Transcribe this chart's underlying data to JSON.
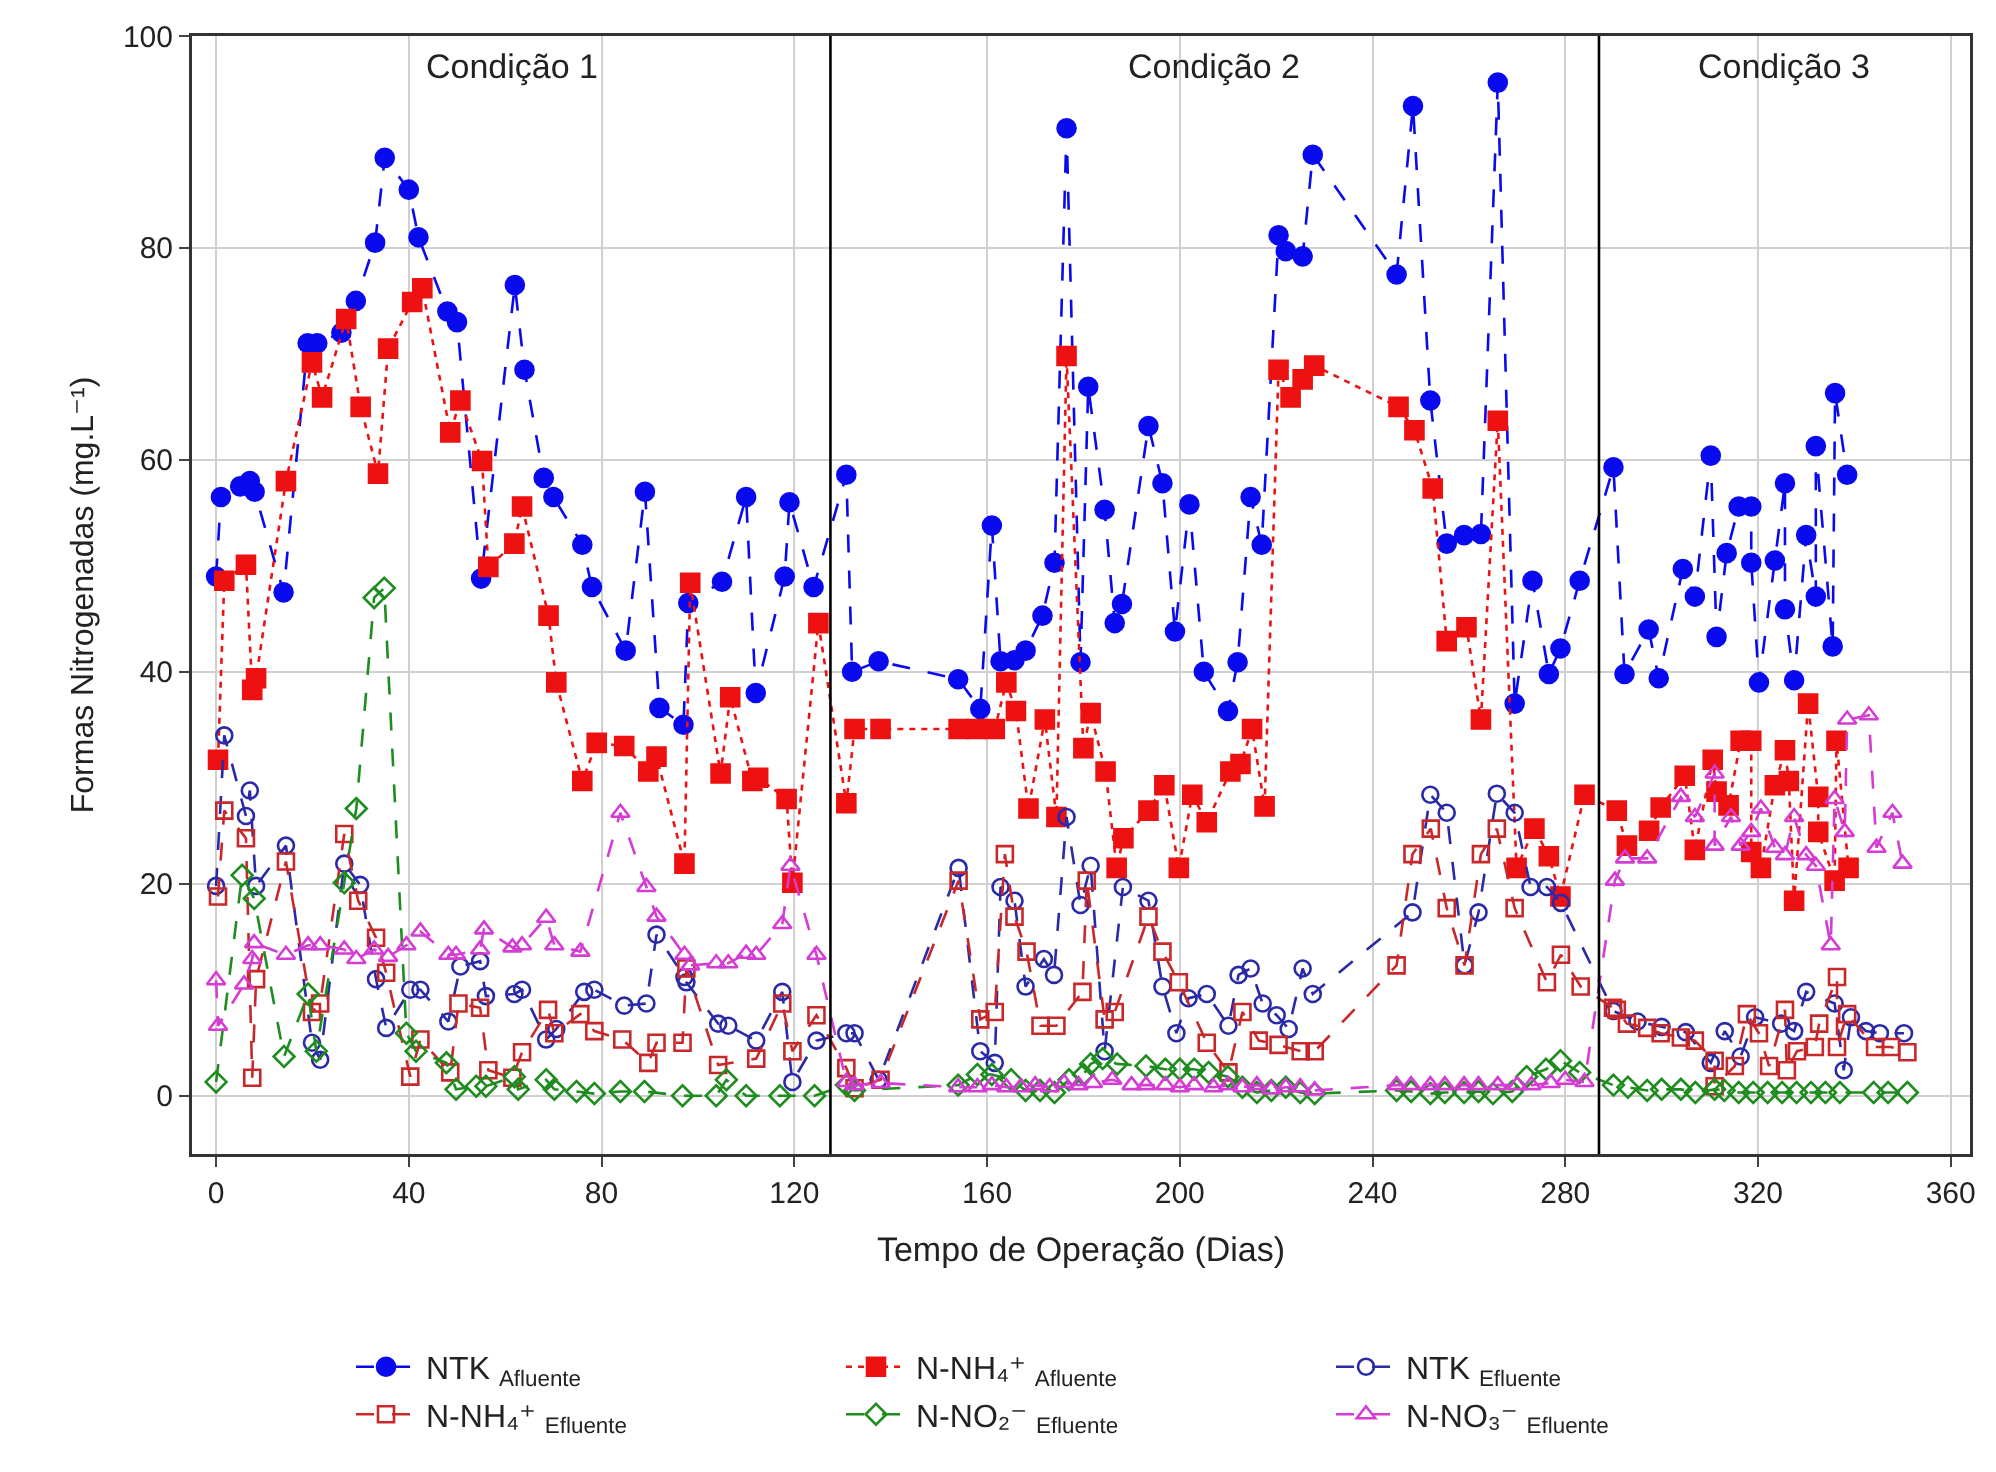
{
  "chart_data": {
    "type": "line",
    "xlabel": "Tempo de Operação (Dias)",
    "ylabel": "Formas Nitrogenadas (mg.L⁻¹)",
    "xlim": [
      -5,
      364
    ],
    "ylim": [
      -5.5,
      100
    ],
    "xticks": [
      0,
      40,
      80,
      120,
      160,
      200,
      240,
      280,
      320,
      360
    ],
    "yticks": [
      0,
      20,
      40,
      60,
      80,
      100
    ],
    "grid": true,
    "legend": "bottom",
    "ref_lines": [
      {
        "axis": "x",
        "value": 127.5,
        "color": "#000000",
        "line_style": "solid"
      },
      {
        "axis": "x",
        "value": 287,
        "color": "#000000",
        "line_style": "solid"
      }
    ],
    "annotations": [
      "Condição 1",
      "Condição 2",
      "Condição 3"
    ],
    "series": [
      {
        "name": "NTK $_{Afluente}$",
        "color": "#0a0aee",
        "marker": "circle",
        "line_style": "dashed",
        "x": [
          0,
          1,
          5,
          7,
          8,
          14,
          19,
          21,
          26,
          29,
          33,
          35,
          40,
          42,
          48,
          50,
          55,
          62,
          64,
          68,
          70,
          76,
          78,
          85,
          89,
          92,
          97,
          98,
          105,
          110,
          112,
          118,
          119,
          124,
          130.8,
          132,
          137.5,
          154,
          158.6,
          161,
          162.8,
          165.7,
          168,
          171.5,
          174,
          176.5,
          179.4,
          181,
          184.4,
          186.5,
          188,
          193.5,
          196.4,
          199,
          202,
          205,
          210,
          212,
          214.7,
          217,
          220.5,
          222,
          225.5,
          227.6,
          245,
          248.4,
          252,
          255.4,
          259,
          262.5,
          266,
          269.5,
          273.2,
          276.6,
          279,
          283,
          290,
          292.3,
          297.3,
          299.4,
          304.4,
          306.9,
          310.2,
          311.4,
          313.5,
          316,
          318.6,
          318.6,
          320.2,
          323.5,
          325.6,
          325.6,
          327.5,
          330,
          332,
          332,
          335.5,
          336,
          338.5
        ],
        "values": [
          49,
          56.5,
          57.5,
          58,
          57,
          47.5,
          71,
          71,
          72,
          75,
          80.5,
          88.5,
          85.5,
          81,
          74,
          73,
          48.8,
          76.5,
          68.5,
          58.3,
          56.5,
          52,
          48,
          42,
          57,
          36.6,
          35,
          46.5,
          48.5,
          56.5,
          38,
          49,
          56,
          48,
          58.6,
          40,
          41,
          39.3,
          36.5,
          53.8,
          41,
          41.1,
          42,
          45.3,
          50.3,
          91.3,
          40.9,
          66.9,
          55.3,
          44.6,
          46.4,
          63.2,
          57.8,
          43.8,
          55.8,
          40,
          36.3,
          40.9,
          56.5,
          52,
          81.2,
          79.7,
          79.2,
          88.8,
          77.5,
          93.4,
          65.6,
          52.1,
          52.9,
          53,
          95.6,
          37,
          48.6,
          39.8,
          42.2,
          48.6,
          59.3,
          39.8,
          44,
          39.4,
          49.7,
          47.1,
          60.4,
          43.3,
          51.2,
          55.6,
          55.6,
          50.3,
          39,
          50.5,
          57.8,
          45.9,
          39.2,
          52.9,
          47.1,
          61.3,
          42.4,
          66.3,
          58.6
        ]
      },
      {
        "name": "N-NH₄⁺ $_{Afluente}$",
        "color": "#ee1111",
        "marker": "square",
        "line_style": "dotted",
        "x": [
          0.4,
          1.7,
          6.2,
          7.5,
          8.3,
          14.5,
          19.9,
          22,
          27,
          30,
          33.6,
          35.7,
          40.7,
          42.8,
          48.6,
          50.7,
          55.2,
          56.5,
          61.9,
          63.5,
          69,
          70.6,
          76,
          79,
          84.7,
          89.7,
          91.4,
          97.2,
          98.4,
          104.7,
          106.7,
          111.3,
          112.5,
          118.4,
          119.6,
          125,
          130.8,
          132.5,
          137.9,
          154.1,
          157.8,
          161.6,
          164,
          166,
          168.6,
          172,
          174.4,
          176.5,
          180,
          181.5,
          184.6,
          186.9,
          188.3,
          193.5,
          196.8,
          199.8,
          202.6,
          205.6,
          210.5,
          212.6,
          215,
          217.6,
          220.5,
          223,
          225.5,
          227.9,
          245.4,
          248.7,
          252.5,
          255.4,
          259.5,
          262.5,
          266,
          269.9,
          273.6,
          276.6,
          279,
          284,
          290.7,
          292.8,
          297.4,
          299.8,
          304.8,
          306.9,
          310.6,
          311.4,
          313.9,
          316.4,
          318.6,
          318.6,
          320.6,
          323.5,
          325.6,
          326.4,
          327.5,
          330.4,
          332.5,
          332.5,
          335.9,
          336.3,
          338.8
        ],
        "values": [
          31.7,
          48.6,
          50.1,
          38.3,
          39.4,
          58,
          69.2,
          65.9,
          73.3,
          65,
          58.7,
          70.5,
          74.9,
          76.2,
          62.6,
          65.6,
          59.9,
          49.9,
          52.1,
          55.6,
          45.3,
          39,
          29.7,
          33.3,
          33,
          30.6,
          32,
          21.9,
          48.4,
          30.4,
          37.6,
          29.7,
          30,
          28,
          20.1,
          44.6,
          27.6,
          34.6,
          34.6,
          34.6,
          34.6,
          34.6,
          39,
          36.3,
          27.1,
          35.5,
          26.3,
          69.8,
          32.8,
          36.1,
          30.6,
          21.5,
          24.3,
          26.9,
          29.3,
          21.5,
          28.4,
          25.8,
          30.6,
          31.3,
          34.6,
          27.3,
          68.5,
          65.9,
          67.6,
          68.9,
          65,
          62.8,
          57.3,
          42.9,
          44.2,
          35.5,
          63.7,
          21.5,
          25.2,
          22.6,
          18.8,
          28.4,
          26.9,
          23.6,
          25,
          27.2,
          30.2,
          23.2,
          31.7,
          28.7,
          27.4,
          33.5,
          33.5,
          23,
          21.5,
          29.3,
          32.6,
          29.7,
          18.4,
          37,
          28.2,
          24.9,
          20.3,
          33.5,
          21.5
        ]
      },
      {
        "name": "NTK $_{Efluente}$",
        "color": "#2a2aa8",
        "marker": "circle",
        "line_style": "dashed",
        "x": [
          0,
          1.7,
          6.2,
          7,
          8.3,
          14.5,
          19.9,
          21.6,
          26.6,
          29.9,
          33.2,
          35.3,
          40.3,
          42.4,
          48.2,
          50.7,
          54.8,
          56,
          61.9,
          63.5,
          68.5,
          70.6,
          76.4,
          78.5,
          84.7,
          89.3,
          91.4,
          97.2,
          97.6,
          104.2,
          106.3,
          112.1,
          117.5,
          119.6,
          124.6,
          130.8,
          132.5,
          137.5,
          154.1,
          158.6,
          161.6,
          162.8,
          165.7,
          168,
          171.8,
          173.9,
          176.5,
          179.4,
          181.5,
          184.4,
          188.2,
          193.5,
          196.4,
          199.3,
          201.8,
          205.6,
          210.1,
          212.2,
          214.7,
          217.2,
          220.1,
          222.6,
          225.5,
          227.6,
          248.3,
          252,
          255.4,
          259.1,
          262,
          265.8,
          269.5,
          272.8,
          276.2,
          279.1,
          290,
          295,
          300,
          305,
          310.2,
          313.1,
          316.4,
          319.4,
          324.8,
          327.5,
          330,
          335.9,
          337.8,
          339.3,
          342.4,
          345.3,
          350.3
        ],
        "values": [
          19.8,
          34,
          26.4,
          28.8,
          19.8,
          23.6,
          5,
          3.4,
          21.9,
          19.9,
          11,
          6.4,
          10,
          10,
          7,
          12.2,
          12.7,
          9.4,
          9.6,
          10,
          5.3,
          6.3,
          9.8,
          10,
          8.5,
          8.7,
          15.2,
          11.2,
          10.7,
          6.8,
          6.6,
          5.2,
          9.8,
          1.3,
          5.2,
          5.9,
          5.9,
          1.5,
          21.5,
          4.2,
          3.1,
          19.7,
          18.4,
          10.3,
          12.9,
          11.4,
          26.3,
          18,
          21.7,
          4.2,
          19.7,
          18.4,
          10.3,
          5.9,
          9.2,
          9.6,
          6.6,
          11.4,
          12,
          8.7,
          7.6,
          6.3,
          12,
          9.6,
          17.3,
          28.4,
          26.7,
          12.3,
          17.3,
          28.5,
          26.7,
          19.7,
          19.7,
          18.2,
          8,
          7,
          6.5,
          6,
          3.1,
          6.1,
          3.7,
          7.4,
          6.8,
          6.1,
          9.8,
          8.7,
          2.4,
          7.4,
          6.1,
          5.9,
          5.9
        ]
      },
      {
        "name": "N-NH₄⁺ $_{Efluente}$",
        "color": "#c8282a",
        "marker": "square",
        "line_style": "dashed",
        "x": [
          0.4,
          1.7,
          6.2,
          7.5,
          8.3,
          14.5,
          19.9,
          21.6,
          26.6,
          29.5,
          33.2,
          35.3,
          40.3,
          42.4,
          48.6,
          50.3,
          54.8,
          56.5,
          61.5,
          63.5,
          68.9,
          70.2,
          75.6,
          78.5,
          84.3,
          89.7,
          91.4,
          96.8,
          97.6,
          104.2,
          112.1,
          117.5,
          119.6,
          124.6,
          130.8,
          132.5,
          137.9,
          154.1,
          158.6,
          161.6,
          163.7,
          165.7,
          168.2,
          171.1,
          174.4,
          179.8,
          180.7,
          184.4,
          186.5,
          193.5,
          196.4,
          199.8,
          205.6,
          210.1,
          213,
          216.4,
          220.5,
          225.1,
          228,
          245,
          248.3,
          252.1,
          255.4,
          259.1,
          262.5,
          265.8,
          269.5,
          276.2,
          279.1,
          283.2,
          289.9,
          290.7,
          292.8,
          297,
          299.8,
          304,
          306.9,
          311,
          311,
          315.2,
          317.7,
          320.2,
          322.3,
          325.6,
          326,
          328.1,
          331.8,
          332.7,
          336.4,
          336.4,
          338.5,
          344.3,
          347.6,
          351
        ],
        "values": [
          18.8,
          26.9,
          24.3,
          1.7,
          11,
          22.1,
          7.9,
          8.7,
          24.7,
          18.4,
          14.9,
          11.6,
          1.8,
          5.3,
          2.2,
          8.7,
          8.3,
          2.4,
          1.7,
          4.1,
          8.1,
          5.9,
          7.7,
          6.1,
          5.3,
          3.1,
          5,
          5,
          12,
          2.9,
          3.5,
          8.7,
          4.2,
          7.6,
          2.6,
          0.7,
          1.5,
          20.3,
          7.2,
          7.9,
          22.8,
          16.9,
          13.6,
          6.6,
          6.6,
          9.8,
          20.3,
          7.2,
          7.9,
          16.9,
          13.6,
          10.7,
          5,
          2.2,
          7.9,
          5.2,
          4.8,
          4.2,
          4.2,
          12.3,
          22.8,
          25.2,
          17.7,
          12.3,
          22.8,
          25.2,
          17.7,
          10.7,
          13.3,
          10.3,
          8.3,
          8.1,
          6.8,
          6.4,
          5.9,
          5.5,
          5.2,
          3.3,
          0.9,
          2.8,
          7.7,
          5.9,
          2.8,
          8.1,
          2.4,
          4.2,
          4.6,
          6.8,
          11.2,
          4.6,
          7.7,
          4.6,
          4.6,
          4.1
        ]
      },
      {
        "name": "N-NO₂⁻ $_{Efluente}$",
        "color": "#1e8c1e",
        "marker": "diamond",
        "line_style": "dashed",
        "x": [
          0,
          5.4,
          7.9,
          14.1,
          19.1,
          20.8,
          26.6,
          29.1,
          32.8,
          34.9,
          39.5,
          41.5,
          47.8,
          49.8,
          54,
          56,
          61.9,
          62.7,
          68.5,
          70.2,
          74.8,
          78.5,
          83.9,
          88.9,
          96.8,
          103.8,
          105.9,
          110,
          117,
          124.2,
          130.8,
          132.5,
          154,
          158,
          161,
          165,
          168,
          171,
          174,
          177,
          180,
          181.5,
          184,
          187,
          193,
          197,
          200,
          203,
          206,
          210,
          213,
          216,
          219,
          222,
          225,
          228,
          245,
          248,
          252,
          255,
          259,
          262,
          265,
          269,
          272,
          276,
          279,
          283,
          290,
          293,
          297,
          300,
          304,
          307,
          311,
          313,
          316,
          319,
          322,
          325,
          328,
          331,
          334,
          337,
          344,
          347,
          351
        ],
        "values": [
          1.3,
          20.8,
          18.6,
          3.7,
          9.6,
          4.2,
          20.1,
          27.1,
          47,
          47.9,
          5.9,
          4.2,
          3.1,
          0.6,
          0.9,
          0.9,
          1.8,
          0.6,
          1.5,
          0.6,
          0.4,
          0.2,
          0.4,
          0.4,
          0,
          0,
          1.5,
          0,
          0,
          0,
          1,
          0.5,
          1,
          2,
          2,
          1.5,
          0.5,
          0.5,
          0.3,
          1.5,
          2,
          3,
          3.5,
          3,
          2.8,
          2.5,
          2.5,
          2.5,
          2.2,
          1.8,
          0.8,
          0.3,
          0.5,
          0.8,
          0.3,
          0.2,
          0.5,
          0.4,
          0.2,
          0.3,
          0.3,
          0.4,
          0.2,
          0.4,
          1.8,
          2.5,
          3.3,
          2.2,
          1,
          0.8,
          0.5,
          0.6,
          0.6,
          0.3,
          0.6,
          0.5,
          0.3,
          0.3,
          0.3,
          0.3,
          0.3,
          0.3,
          0.3,
          0.3,
          0.3,
          0.3,
          0.3
        ]
      },
      {
        "name": "N-NO₃⁻ $_{Efluente}$",
        "color": "#d43cd4",
        "marker": "triangle",
        "line_style": "dashed",
        "x": [
          0,
          0.4,
          5.8,
          7.5,
          7.9,
          14.5,
          19.1,
          21.6,
          26.6,
          29.1,
          32.8,
          35.7,
          39.5,
          42.4,
          48.2,
          49.8,
          54.8,
          55.6,
          61.5,
          63.5,
          68.5,
          70.2,
          75.6,
          83.9,
          89.3,
          91.4,
          97.2,
          98.4,
          103.8,
          106.3,
          110,
          112.1,
          117.5,
          119.2,
          124.6,
          130.8,
          132.5,
          137.9,
          154,
          158,
          161,
          164,
          167,
          170,
          173,
          176,
          179,
          182,
          186,
          190,
          193,
          197,
          200,
          203,
          207,
          210,
          213,
          216,
          219,
          222,
          225,
          228,
          245,
          248,
          252,
          255,
          259,
          262,
          266,
          270,
          273,
          277,
          280,
          284,
          290.3,
          292.4,
          297,
          304,
          306.9,
          311,
          311,
          314.4,
          316.4,
          318.6,
          320.6,
          323.5,
          325.6,
          327.5,
          330,
          332,
          335.1,
          335.9,
          338,
          338.5,
          343,
          344.6,
          347.9,
          350
        ],
        "values": [
          10.9,
          6.6,
          10.5,
          12.9,
          14.4,
          13.3,
          14.2,
          14.2,
          13.8,
          12.9,
          13.8,
          13.1,
          14.2,
          15.5,
          13.3,
          13.3,
          13.8,
          15.7,
          14,
          14.2,
          16.8,
          14.2,
          13.6,
          26.7,
          19.7,
          16.9,
          13.3,
          12.3,
          12.5,
          12.5,
          13.4,
          13.3,
          16.2,
          21.7,
          13.3,
          1.3,
          1,
          1.2,
          0.8,
          0.8,
          1,
          0.8,
          0.8,
          1,
          0.8,
          1.2,
          1,
          1.2,
          1.5,
          1,
          1,
          1,
          0.8,
          1,
          0.8,
          1,
          0.8,
          1,
          0.6,
          0.8,
          0.8,
          0.5,
          1,
          1,
          1,
          1,
          1,
          1,
          1,
          1,
          1,
          1.2,
          1.5,
          1.3,
          20.3,
          22.4,
          22.4,
          28.2,
          26.3,
          30.4,
          23.6,
          26.3,
          23.6,
          24.9,
          27.1,
          23.4,
          22.7,
          26.3,
          22.7,
          21.7,
          14.2,
          28,
          24.9,
          35.5,
          35.9,
          23.4,
          26.7,
          21.9
        ]
      }
    ]
  }
}
